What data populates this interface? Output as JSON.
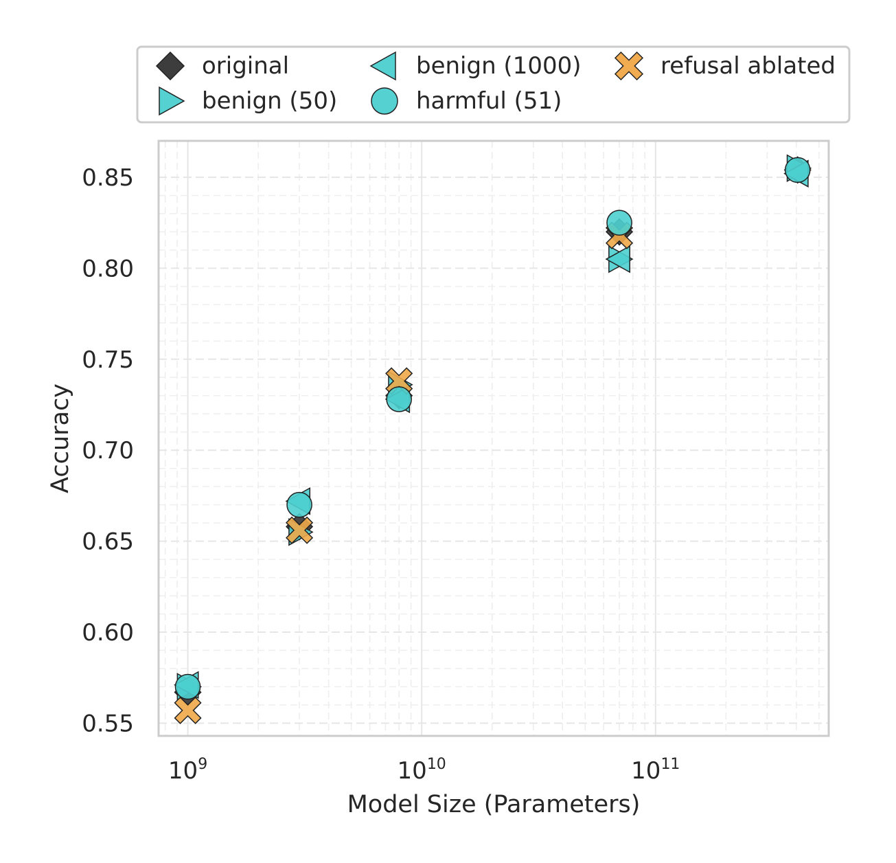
{
  "chart_data": {
    "type": "scatter",
    "xlabel": "Model Size (Parameters)",
    "ylabel": "Accuracy",
    "xscale": "log",
    "xlim": [
      750000000.0,
      550000000000.0
    ],
    "ylim": [
      0.543,
      0.87
    ],
    "x_ticks": [
      {
        "value": 1000000000.0,
        "base": "10",
        "exp": "9"
      },
      {
        "value": 10000000000.0,
        "base": "10",
        "exp": "10"
      },
      {
        "value": 100000000000.0,
        "base": "10",
        "exp": "11"
      }
    ],
    "y_ticks": [
      {
        "value": 0.55,
        "label": "0.55"
      },
      {
        "value": 0.6,
        "label": "0.60"
      },
      {
        "value": 0.65,
        "label": "0.65"
      },
      {
        "value": 0.7,
        "label": "0.70"
      },
      {
        "value": 0.75,
        "label": "0.75"
      },
      {
        "value": 0.8,
        "label": "0.80"
      },
      {
        "value": 0.85,
        "label": "0.85"
      }
    ],
    "grid": true,
    "legend_position": "top",
    "series": [
      {
        "name": "original",
        "marker": "diamond",
        "color": "#333333",
        "points": [
          {
            "x": 1000000000.0,
            "y": 0.567
          },
          {
            "x": 3000000000.0,
            "y": 0.658
          },
          {
            "x": 8000000000.0,
            "y": 0.73
          },
          {
            "x": 70000000000.0,
            "y": 0.82
          },
          {
            "x": 405000000000.0,
            "y": 0.854
          }
        ]
      },
      {
        "name": "benign (50)",
        "marker": "triangle-right",
        "color": "#4ccfcf",
        "points": [
          {
            "x": 1000000000.0,
            "y": 0.57
          },
          {
            "x": 3000000000.0,
            "y": 0.655
          },
          {
            "x": 8000000000.0,
            "y": 0.736
          },
          {
            "x": 70000000000.0,
            "y": 0.805
          },
          {
            "x": 405000000000.0,
            "y": 0.855
          }
        ]
      },
      {
        "name": "benign (1000)",
        "marker": "triangle-left",
        "color": "#4ccfcf",
        "points": [
          {
            "x": 1000000000.0,
            "y": 0.571
          },
          {
            "x": 3000000000.0,
            "y": 0.672
          },
          {
            "x": 8000000000.0,
            "y": 0.728
          },
          {
            "x": 70000000000.0,
            "y": 0.805
          },
          {
            "x": 405000000000.0,
            "y": 0.852
          }
        ]
      },
      {
        "name": "harmful (51)",
        "marker": "circle",
        "color": "#4ccfcf",
        "points": [
          {
            "x": 1000000000.0,
            "y": 0.57
          },
          {
            "x": 3000000000.0,
            "y": 0.67
          },
          {
            "x": 8000000000.0,
            "y": 0.728
          },
          {
            "x": 70000000000.0,
            "y": 0.825
          },
          {
            "x": 405000000000.0,
            "y": 0.854
          }
        ]
      },
      {
        "name": "refusal ablated",
        "marker": "x-filled",
        "color": "#f0a848",
        "points": [
          {
            "x": 1000000000.0,
            "y": 0.557
          },
          {
            "x": 3000000000.0,
            "y": 0.656
          },
          {
            "x": 8000000000.0,
            "y": 0.738
          },
          {
            "x": 70000000000.0,
            "y": 0.818
          }
        ]
      }
    ]
  }
}
